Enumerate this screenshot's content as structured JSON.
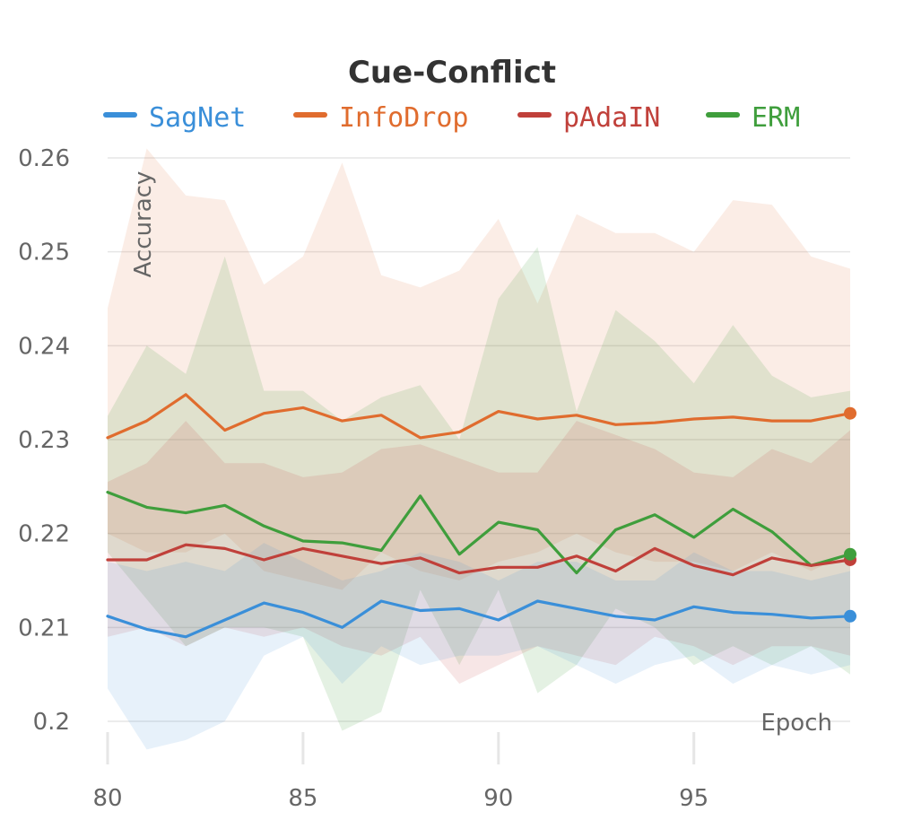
{
  "chart_data": {
    "type": "line",
    "title": "Cue-Conflict",
    "xlabel": "Epoch",
    "ylabel": "Accuracy",
    "xlim": [
      80,
      99
    ],
    "ylim": [
      0.2,
      0.26
    ],
    "x_ticks": [
      80,
      85,
      90,
      95
    ],
    "x_tick_labels": [
      "80",
      "85",
      "90",
      "95"
    ],
    "y_ticks": [
      0.2,
      0.21,
      0.22,
      0.23,
      0.24,
      0.25,
      0.26
    ],
    "y_tick_labels": [
      "0.2",
      "0.21",
      "0.22",
      "0.23",
      "0.24",
      "0.25",
      "0.26"
    ],
    "grid": true,
    "legend_position": "top",
    "x": [
      80,
      81,
      82,
      83,
      84,
      85,
      86,
      87,
      88,
      89,
      90,
      91,
      92,
      93,
      94,
      95,
      96,
      97,
      98,
      99
    ],
    "series": [
      {
        "name": "SagNet",
        "color": "#3a8fd9",
        "values": [
          0.2112,
          0.2098,
          0.209,
          0.2108,
          0.2126,
          0.2116,
          0.21,
          0.2128,
          0.2118,
          0.212,
          0.2108,
          0.2128,
          0.212,
          0.2112,
          0.2108,
          0.2122,
          0.2116,
          0.2114,
          0.211,
          0.2112
        ],
        "upper": [
          0.217,
          0.216,
          0.217,
          0.216,
          0.219,
          0.217,
          0.215,
          0.216,
          0.218,
          0.217,
          0.215,
          0.217,
          0.217,
          0.215,
          0.215,
          0.218,
          0.216,
          0.216,
          0.215,
          0.216
        ],
        "lower": [
          0.2035,
          0.197,
          0.198,
          0.2,
          0.207,
          0.209,
          0.204,
          0.208,
          0.206,
          0.207,
          0.207,
          0.208,
          0.206,
          0.204,
          0.206,
          0.207,
          0.204,
          0.206,
          0.205,
          0.206
        ]
      },
      {
        "name": "InfoDrop",
        "color": "#e06c2e",
        "values": [
          0.2302,
          0.232,
          0.2348,
          0.231,
          0.2328,
          0.2334,
          0.232,
          0.2326,
          0.2302,
          0.2308,
          0.233,
          0.2322,
          0.2326,
          0.2316,
          0.2318,
          0.2322,
          0.2324,
          0.232,
          0.232,
          0.2328
        ],
        "upper": [
          0.244,
          0.261,
          0.256,
          0.2555,
          0.2465,
          0.2495,
          0.2595,
          0.2475,
          0.2462,
          0.248,
          0.2535,
          0.2445,
          0.254,
          0.252,
          0.252,
          0.25,
          0.2555,
          0.255,
          0.2495,
          0.2482
        ],
        "lower": [
          0.22,
          0.218,
          0.218,
          0.22,
          0.216,
          0.215,
          0.214,
          0.218,
          0.216,
          0.215,
          0.217,
          0.218,
          0.22,
          0.218,
          0.217,
          0.217,
          0.216,
          0.218,
          0.216,
          0.218
        ]
      },
      {
        "name": "pAdaIN",
        "color": "#c0403a",
        "values": [
          0.2172,
          0.2172,
          0.2188,
          0.2184,
          0.2172,
          0.2184,
          0.2176,
          0.2168,
          0.2174,
          0.2158,
          0.2164,
          0.2164,
          0.2176,
          0.216,
          0.2184,
          0.2166,
          0.2156,
          0.2174,
          0.2166,
          0.2172
        ],
        "upper": [
          0.2255,
          0.2275,
          0.232,
          0.2275,
          0.2275,
          0.226,
          0.2265,
          0.229,
          0.2295,
          0.228,
          0.2265,
          0.2265,
          0.232,
          0.2305,
          0.229,
          0.2265,
          0.226,
          0.229,
          0.2275,
          0.231
        ],
        "lower": [
          0.209,
          0.21,
          0.208,
          0.21,
          0.209,
          0.21,
          0.208,
          0.207,
          0.209,
          0.204,
          0.206,
          0.208,
          0.207,
          0.206,
          0.209,
          0.208,
          0.206,
          0.208,
          0.208,
          0.207
        ]
      },
      {
        "name": "ERM",
        "color": "#3f9e3c",
        "values": [
          0.2244,
          0.2228,
          0.2222,
          0.223,
          0.2208,
          0.2192,
          0.219,
          0.2182,
          0.224,
          0.2178,
          0.2212,
          0.2204,
          0.2158,
          0.2204,
          0.222,
          0.2196,
          0.2226,
          0.2202,
          0.2166,
          0.2178
        ],
        "upper": [
          0.2325,
          0.24,
          0.237,
          0.2495,
          0.2352,
          0.2352,
          0.232,
          0.2345,
          0.2358,
          0.23,
          0.245,
          0.2505,
          0.233,
          0.2438,
          0.2405,
          0.236,
          0.2422,
          0.2368,
          0.2345,
          0.2352
        ],
        "lower": [
          0.218,
          0.213,
          0.208,
          0.21,
          0.21,
          0.209,
          0.199,
          0.201,
          0.214,
          0.206,
          0.214,
          0.203,
          0.206,
          0.212,
          0.21,
          0.206,
          0.208,
          0.206,
          0.208,
          0.205
        ]
      }
    ]
  }
}
